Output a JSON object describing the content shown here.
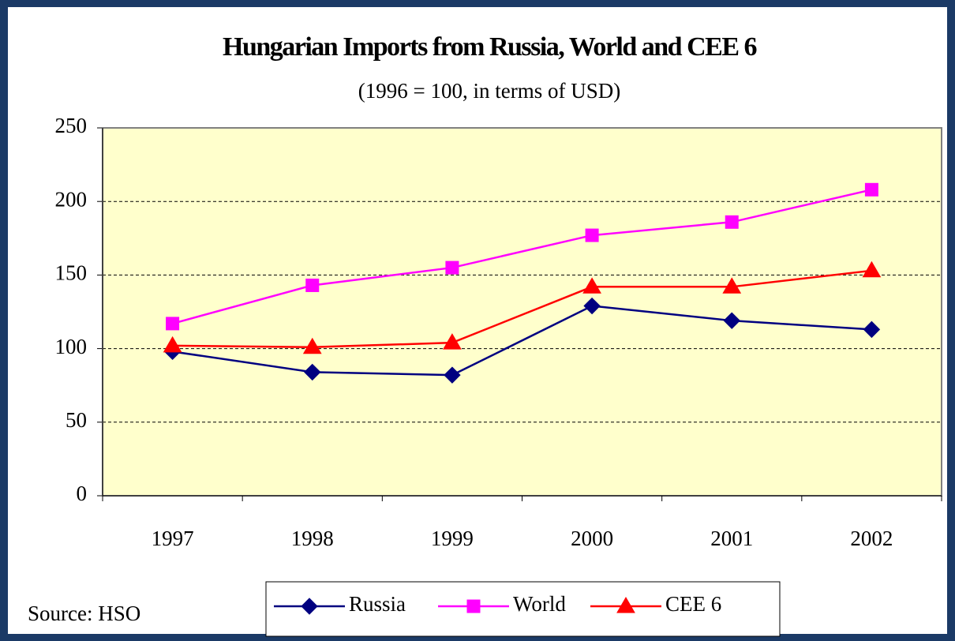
{
  "chart_data": {
    "type": "line",
    "title": "Hungarian Imports from Russia, World and CEE 6",
    "subtitle": "(1996 = 100, in terms of USD)",
    "source": "Source: HSO",
    "categories": [
      "1997",
      "1998",
      "1999",
      "2000",
      "2001",
      "2002"
    ],
    "series": [
      {
        "name": "Russia",
        "color": "#000080",
        "marker": "diamond",
        "values": [
          98,
          84,
          82,
          129,
          119,
          113
        ]
      },
      {
        "name": "World",
        "color": "#ff00ff",
        "marker": "square",
        "values": [
          117,
          143,
          155,
          177,
          186,
          208
        ]
      },
      {
        "name": "CEE 6",
        "color": "#ff0000",
        "marker": "triangle",
        "values": [
          102,
          101,
          104,
          142,
          142,
          153
        ]
      }
    ],
    "ylim": [
      0,
      250
    ],
    "yticks": [
      0,
      50,
      100,
      150,
      200,
      250
    ],
    "grid": true,
    "legend": "bottom"
  }
}
